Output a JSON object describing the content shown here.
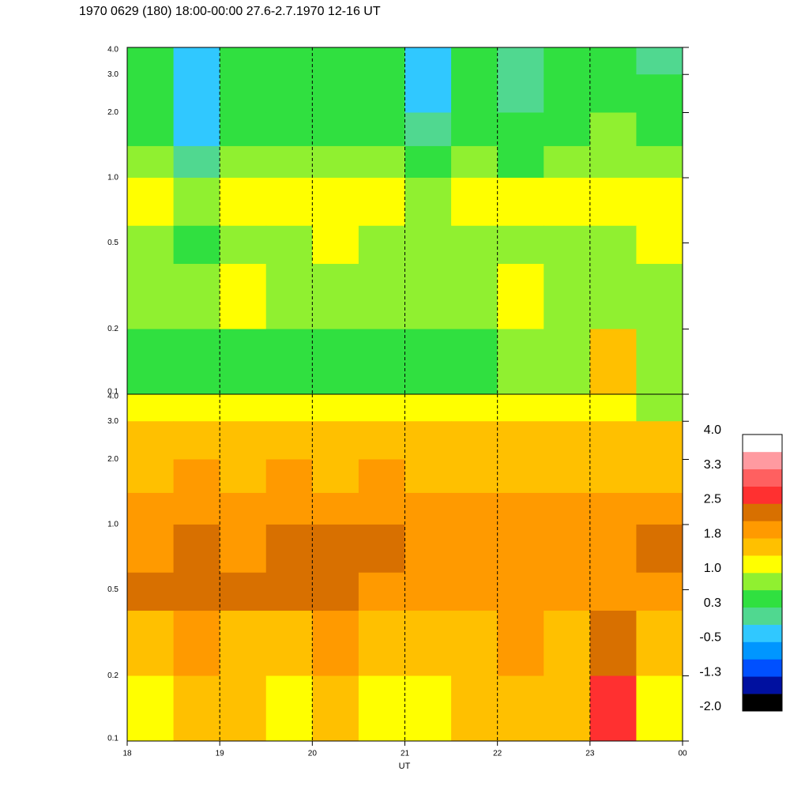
{
  "chart_data": [
    {
      "type": "heatmap",
      "title": "1970 0629 (180) 18:00-00:00 27.6-2.7.1970  12-16 UT",
      "xlim": [
        18,
        24
      ],
      "ylim": [
        0.1,
        4
      ],
      "log_y": true,
      "yticks": [
        0.1,
        0.2,
        0.5,
        {
          "value": 1,
          "label": "1.0"
        },
        {
          "value": 2,
          "label": "2.0"
        },
        {
          "value": 3,
          "label": "3.0"
        },
        {
          "value": 4,
          "label": "4.0"
        }
      ],
      "x_edges": [
        18,
        18.5,
        19,
        19.5,
        20,
        20.5,
        21,
        21.5,
        22,
        22.5,
        23,
        23.5,
        24
      ],
      "y_edges": [
        4,
        3,
        2,
        1.4,
        1,
        0.6,
        0.4,
        0.2,
        0.1
      ],
      "values": [
        [
          0.4,
          -0.2,
          0.3,
          0.5,
          0.4,
          0.3,
          -0.2,
          0.3,
          0.2,
          0.4,
          0.5,
          0.2
        ],
        [
          0.5,
          -0.4,
          0.4,
          0.5,
          0.5,
          0.4,
          -0.4,
          0.4,
          0.1,
          0.5,
          0.5,
          0.4
        ],
        [
          0.6,
          -0.3,
          0.5,
          0.6,
          0.6,
          0.5,
          0.0,
          0.5,
          0.3,
          0.6,
          0.7,
          0.5
        ],
        [
          0.9,
          0.2,
          0.7,
          0.8,
          0.9,
          0.8,
          0.4,
          0.8,
          0.6,
          0.8,
          0.8,
          0.7
        ],
        [
          1.1,
          0.7,
          1.1,
          1.0,
          1.2,
          1.0,
          0.9,
          1.1,
          1.0,
          1.0,
          1.1,
          1.2
        ],
        [
          0.9,
          0.6,
          0.9,
          0.9,
          1.0,
          0.9,
          0.8,
          0.9,
          0.9,
          0.9,
          0.8,
          1.0
        ],
        [
          0.8,
          0.7,
          1.0,
          0.8,
          0.9,
          0.8,
          0.8,
          0.9,
          1.0,
          0.9,
          0.8,
          0.7
        ],
        [
          0.5,
          0.5,
          0.6,
          0.5,
          0.6,
          0.5,
          0.5,
          0.6,
          0.7,
          0.7,
          1.5,
          0.7
        ]
      ],
      "grid": true
    },
    {
      "type": "heatmap",
      "xlabel": "UT",
      "xlim": [
        18,
        24
      ],
      "ylim": [
        0.1,
        4
      ],
      "log_y": true,
      "xticks": [
        18,
        19,
        20,
        21,
        22,
        23,
        {
          "value": 24,
          "label": "00"
        }
      ],
      "yticks": [
        0.1,
        0.2,
        0.5,
        {
          "value": 1,
          "label": "1.0"
        },
        {
          "value": 2,
          "label": "2.0"
        },
        {
          "value": 3,
          "label": "3.0"
        },
        {
          "value": 4,
          "label": "4.0"
        }
      ],
      "x_edges": [
        18,
        18.5,
        19,
        19.5,
        20,
        20.5,
        21,
        21.5,
        22,
        22.5,
        23,
        23.5,
        24
      ],
      "y_edges": [
        4,
        3,
        2,
        1.4,
        1,
        0.6,
        0.4,
        0.2,
        0.1
      ],
      "values": [
        [
          1.0,
          1.1,
          1.0,
          1.1,
          1.0,
          1.0,
          1.0,
          1.1,
          1.0,
          1.1,
          1.0,
          0.9
        ],
        [
          1.5,
          1.6,
          1.5,
          1.6,
          1.5,
          1.6,
          1.5,
          1.5,
          1.5,
          1.6,
          1.5,
          1.4
        ],
        [
          1.7,
          1.8,
          1.7,
          1.8,
          1.7,
          1.8,
          1.7,
          1.7,
          1.6,
          1.7,
          1.6,
          1.7
        ],
        [
          1.9,
          2.0,
          1.9,
          1.9,
          1.9,
          2.0,
          1.8,
          1.8,
          1.8,
          1.9,
          1.8,
          2.0
        ],
        [
          2.0,
          2.2,
          2.1,
          2.2,
          2.2,
          2.3,
          1.9,
          1.9,
          2.0,
          1.9,
          1.8,
          2.2
        ],
        [
          2.2,
          2.3,
          2.2,
          2.2,
          2.2,
          2.1,
          1.9,
          2.0,
          2.1,
          1.9,
          1.8,
          2.0
        ],
        [
          1.7,
          1.8,
          1.7,
          1.7,
          1.8,
          1.7,
          1.6,
          1.7,
          1.8,
          1.7,
          2.4,
          1.5
        ],
        [
          1.3,
          1.5,
          1.4,
          1.3,
          1.4,
          1.3,
          1.2,
          1.6,
          1.7,
          1.6,
          2.6,
          1.3
        ]
      ],
      "grid": true
    }
  ],
  "colorbar": {
    "clim": [
      -2,
      4
    ],
    "colors": [
      "#000000",
      "#0010a0",
      "#0050ff",
      "#0096ff",
      "#30c8ff",
      "#50d890",
      "#30e040",
      "#90f030",
      "#ffff00",
      "#ffc000",
      "#ff9a00",
      "#d87000",
      "#ff3030",
      "#ff6060",
      "#ff9aa0",
      "#ffffff"
    ],
    "ticks": [
      {
        "value": 4,
        "label": "4.0"
      },
      {
        "value": 3.25,
        "label": "3.3"
      },
      {
        "value": 2.5,
        "label": "2.5"
      },
      {
        "value": 1.75,
        "label": "1.8"
      },
      {
        "value": 1,
        "label": "1.0"
      },
      {
        "value": 0.25,
        "label": "0.3"
      },
      {
        "value": -0.5,
        "label": "-0.5"
      },
      {
        "value": -1.25,
        "label": "-1.3"
      },
      {
        "value": -2,
        "label": "-2.0"
      }
    ]
  }
}
